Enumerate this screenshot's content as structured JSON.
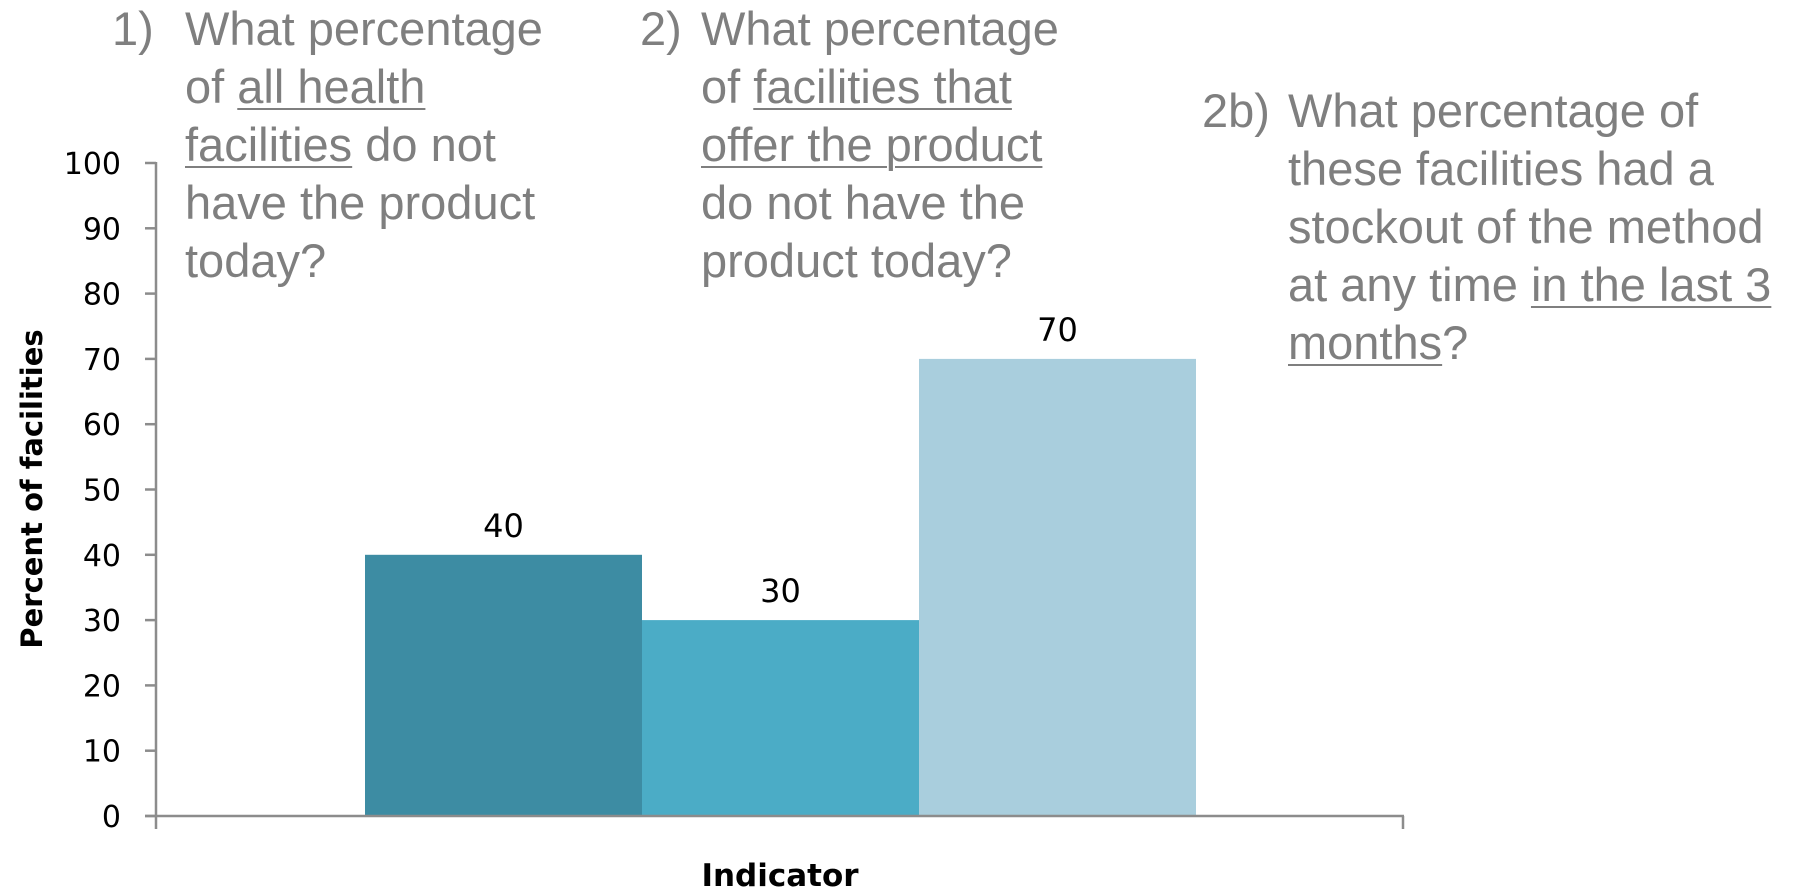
{
  "chart_data": {
    "type": "bar",
    "categories": [
      "1)",
      "2)",
      "2b)"
    ],
    "values": [
      40,
      30,
      70
    ],
    "data_labels": [
      "40",
      "30",
      "70"
    ],
    "colors": [
      "#3d8ca3",
      "#4bacc6",
      "#a9cedd"
    ],
    "ylabel": "Percent of facilities",
    "xlabel": "Indicator",
    "ylim": [
      0,
      100
    ],
    "yticks": [
      0,
      10,
      20,
      30,
      40,
      50,
      60,
      70,
      80,
      90,
      100
    ],
    "grid": false,
    "legend": "none"
  },
  "questions": [
    {
      "num": "1)",
      "before": "What percentage of ",
      "underlined": "all health facilities",
      "after": " do not have the product today?"
    },
    {
      "num": "2)",
      "before": "What percentage of ",
      "underlined": "facilities that offer the product",
      "after": " do not have the product today?"
    },
    {
      "num": "2b)",
      "before": "What percentage of these facilities had a stockout of the method at any time ",
      "underlined": "in the last 3 months",
      "after": "?"
    }
  ]
}
